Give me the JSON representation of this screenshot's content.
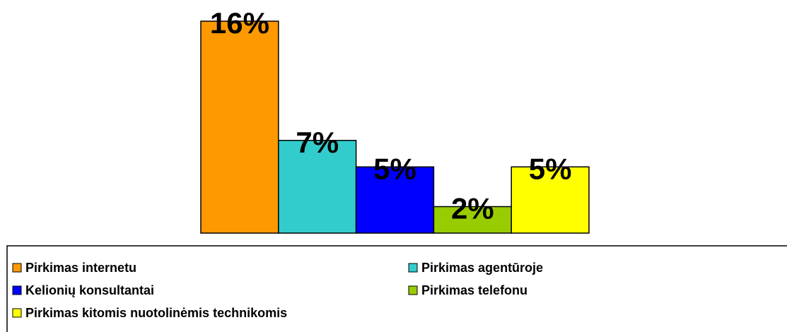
{
  "chart_data": {
    "type": "bar",
    "series": [
      {
        "name": "Pirkimas internetu",
        "color": "#ff9900",
        "values": [
          16
        ],
        "value_labels": [
          "16%"
        ]
      },
      {
        "name": "Pirkimas agentūroje",
        "color": "#33cccc",
        "values": [
          7
        ],
        "value_labels": [
          "7%"
        ]
      },
      {
        "name": "Kelionių konsultantai",
        "color": "#0000ff",
        "values": [
          5
        ],
        "value_labels": [
          "5%"
        ]
      },
      {
        "name": "Pirkimas telefonu",
        "color": "#99cc00",
        "values": [
          2
        ],
        "value_labels": [
          "2%"
        ]
      },
      {
        "name": "Pirkimas kitomis nuotolinėmis technikomis",
        "color": "#ffff00",
        "values": [
          5
        ],
        "value_labels": [
          "5%"
        ]
      }
    ],
    "ylim": [
      0,
      16
    ]
  }
}
